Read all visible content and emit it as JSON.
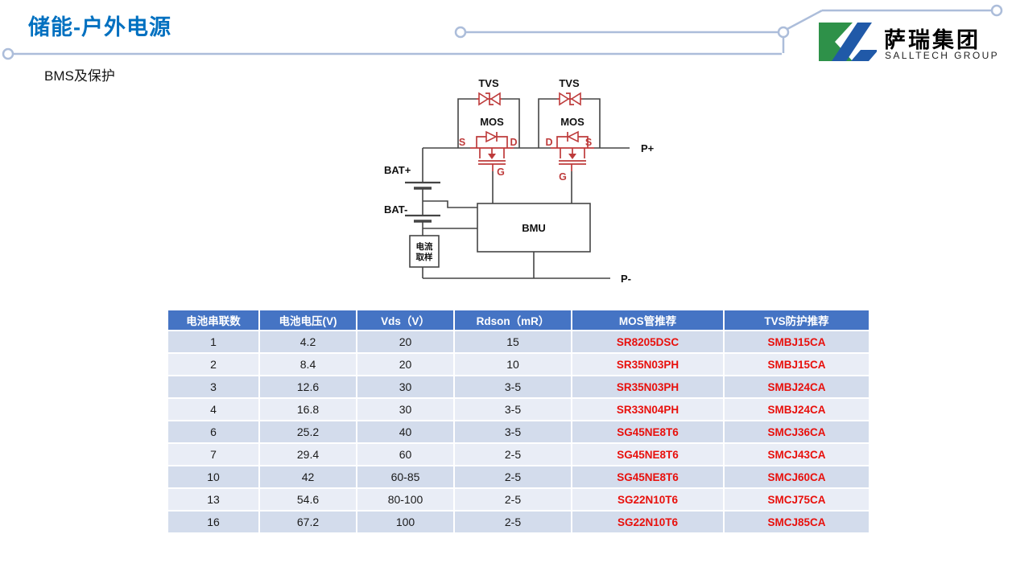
{
  "slide": {
    "title": "储能-户外电源",
    "subtitle": "BMS及保护"
  },
  "logo": {
    "company_cn": "萨瑞集团",
    "company_en": "SALLTECH GROUP",
    "mark_green": "#2E9149",
    "mark_blue": "#2059A8"
  },
  "diagram": {
    "tvs1_label": "TVS",
    "tvs2_label": "TVS",
    "mos1_label": "MOS",
    "mos2_label": "MOS",
    "mos1_s": "S",
    "mos1_d": "D",
    "mos1_g": "G",
    "mos2_d": "D",
    "mos2_s": "S",
    "mos2_g": "G",
    "bat_plus": "BAT+",
    "bat_minus": "BAT-",
    "bmu_label": "BMU",
    "current_sample_line1": "电流",
    "current_sample_line2": "取样",
    "p_plus": "P+",
    "p_minus": "P-"
  },
  "table": {
    "headers": [
      "电池串联数",
      "电池电压(V)",
      "Vds（V）",
      "Rdson（mR）",
      "MOS管推荐",
      "TVS防护推荐"
    ],
    "rows": [
      [
        "1",
        "4.2",
        "20",
        "15",
        "SR8205DSC",
        "SMBJ15CA"
      ],
      [
        "2",
        "8.4",
        "20",
        "10",
        "SR35N03PH",
        "SMBJ15CA"
      ],
      [
        "3",
        "12.6",
        "30",
        "3-5",
        "SR35N03PH",
        "SMBJ24CA"
      ],
      [
        "4",
        "16.8",
        "30",
        "3-5",
        "SR33N04PH",
        "SMBJ24CA"
      ],
      [
        "6",
        "25.2",
        "40",
        "3-5",
        "SG45NE8T6",
        "SMCJ36CA"
      ],
      [
        "7",
        "29.4",
        "60",
        "2-5",
        "SG45NE8T6",
        "SMCJ43CA"
      ],
      [
        "10",
        "42",
        "60-85",
        "2-5",
        "SG45NE8T6",
        "SMCJ60CA"
      ],
      [
        "13",
        "54.6",
        "80-100",
        "2-5",
        "SG22N10T6",
        "SMCJ75CA"
      ],
      [
        "16",
        "67.2",
        "100",
        "2-5",
        "SG22N10T6",
        "SMCJ85CA"
      ]
    ]
  },
  "colors": {
    "title_blue": "#0070C0",
    "decorative_line": "#ACBDDA",
    "table_header_bg": "#4574C4",
    "band_dark": "#D3DCEC",
    "band_light": "#E9EDF6",
    "table_red_text": "#E8100C",
    "circuit_red": "#BE3B3B",
    "circuit_line": "#454545"
  }
}
